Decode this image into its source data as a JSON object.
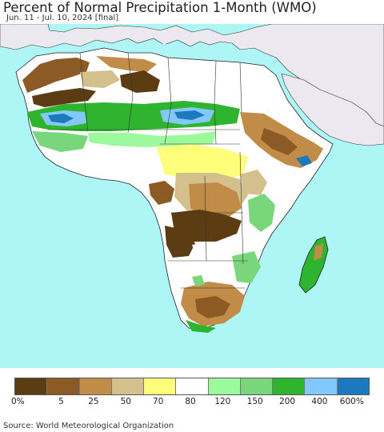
{
  "title": "Percent of Normal Precipitation 1-Month (WMO)",
  "subtitle": "Jun. 11 - Jul. 10, 2024 [final]",
  "source": "Source: World Meteorological Organization",
  "legend": {
    "colors": [
      "#5c3c12",
      "#8c5a24",
      "#c08c48",
      "#d4c08c",
      "#fefe7a",
      "#ffffff",
      "#9cfa9c",
      "#7ad67a",
      "#2eb42e",
      "#82c8fa",
      "#1e78be"
    ],
    "labels": [
      "0%",
      "5",
      "25",
      "50",
      "70",
      "80",
      "120",
      "150",
      "200",
      "400",
      "600%"
    ]
  },
  "map_colors": {
    "ocean": "#aef6f6",
    "land_other": "#ece8f0",
    "land_white": "#ffffff",
    "border": "#222222"
  }
}
